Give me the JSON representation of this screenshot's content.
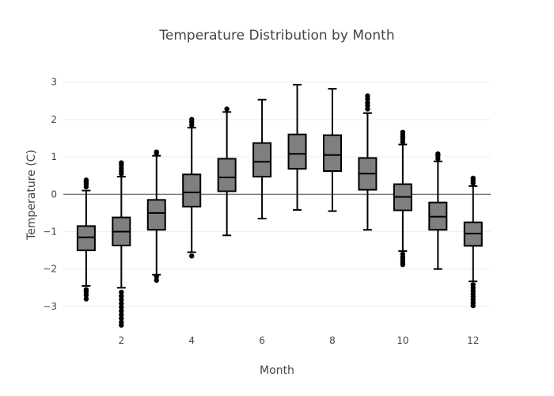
{
  "chart_data": {
    "type": "box",
    "title": "Temperature Distribution by Month",
    "xlabel": "Month",
    "ylabel": "Temperature (C)",
    "xlim": [
      0.35,
      12.5
    ],
    "ylim": [
      -3.7,
      3.5
    ],
    "xticks": [
      2,
      4,
      6,
      8,
      10,
      12
    ],
    "yticks": [
      -3,
      -2,
      -1,
      0,
      1,
      2,
      3
    ],
    "fill_color": "#7f7f7f",
    "line_color": "#000000",
    "boxes": [
      {
        "month": 1,
        "q1": -1.5,
        "median": -1.15,
        "q3": -0.85,
        "whisker_low": -2.45,
        "whisker_high": 0.1,
        "outliers": [
          0.2,
          0.27,
          0.33,
          0.38,
          -2.55,
          -2.62,
          -2.7,
          -2.8
        ]
      },
      {
        "month": 2,
        "q1": -1.37,
        "median": -1.0,
        "q3": -0.62,
        "whisker_low": -2.5,
        "whisker_high": 0.47,
        "outliers": [
          0.55,
          0.62,
          0.7,
          0.78,
          0.84,
          -2.62,
          -2.72,
          -2.82,
          -2.92,
          -3.02,
          -3.12,
          -3.22,
          -3.32,
          -3.42,
          -3.5
        ]
      },
      {
        "month": 3,
        "q1": -0.95,
        "median": -0.5,
        "q3": -0.15,
        "whisker_low": -2.15,
        "whisker_high": 1.03,
        "outliers": [
          1.1,
          1.13,
          -2.2,
          -2.3
        ]
      },
      {
        "month": 4,
        "q1": -0.33,
        "median": 0.05,
        "q3": 0.53,
        "whisker_low": -1.55,
        "whisker_high": 1.78,
        "outliers": [
          1.85,
          1.93,
          2.0,
          -1.65
        ]
      },
      {
        "month": 5,
        "q1": 0.08,
        "median": 0.45,
        "q3": 0.95,
        "whisker_low": -1.1,
        "whisker_high": 2.2,
        "outliers": [
          2.28
        ]
      },
      {
        "month": 6,
        "q1": 0.47,
        "median": 0.87,
        "q3": 1.37,
        "whisker_low": -0.65,
        "whisker_high": 2.53,
        "outliers": []
      },
      {
        "month": 7,
        "q1": 0.68,
        "median": 1.08,
        "q3": 1.6,
        "whisker_low": -0.42,
        "whisker_high": 2.93,
        "outliers": []
      },
      {
        "month": 8,
        "q1": 0.62,
        "median": 1.05,
        "q3": 1.58,
        "whisker_low": -0.45,
        "whisker_high": 2.82,
        "outliers": []
      },
      {
        "month": 9,
        "q1": 0.12,
        "median": 0.55,
        "q3": 0.97,
        "whisker_low": -0.95,
        "whisker_high": 2.17,
        "outliers": [
          2.28,
          2.37,
          2.45,
          2.55,
          2.63
        ]
      },
      {
        "month": 10,
        "q1": -0.43,
        "median": -0.07,
        "q3": 0.27,
        "whisker_low": -1.52,
        "whisker_high": 1.33,
        "outliers": [
          1.4,
          1.47,
          1.53,
          1.6,
          1.66,
          -1.6,
          -1.68,
          -1.75,
          -1.82,
          -1.88
        ]
      },
      {
        "month": 11,
        "q1": -0.95,
        "median": -0.6,
        "q3": -0.22,
        "whisker_low": -2.0,
        "whisker_high": 0.88,
        "outliers": [
          0.95,
          1.03,
          1.08
        ]
      },
      {
        "month": 12,
        "q1": -1.38,
        "median": -1.05,
        "q3": -0.75,
        "whisker_low": -2.33,
        "whisker_high": 0.22,
        "outliers": [
          0.3,
          0.37,
          0.43,
          -2.42,
          -2.5,
          -2.58,
          -2.66,
          -2.74,
          -2.82,
          -2.9,
          -2.98
        ]
      }
    ]
  }
}
